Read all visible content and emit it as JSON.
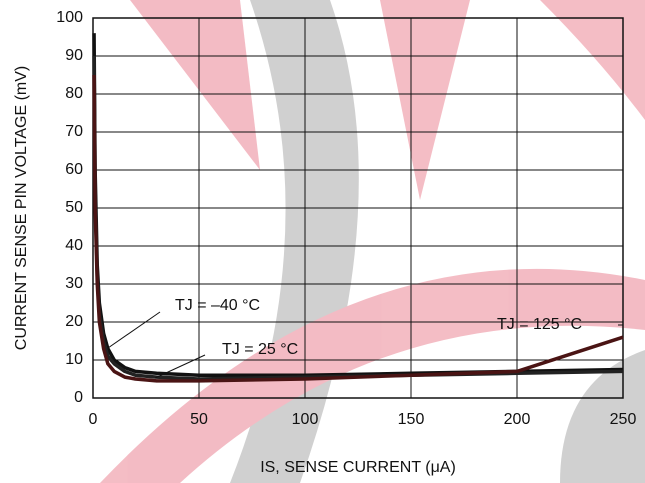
{
  "chart_data": {
    "type": "line",
    "x_label": "IS, SENSE CURRENT (μA)",
    "y_label": "CURRENT SENSE PIN VOLTAGE (mV)",
    "x": [
      0.5,
      1,
      2,
      3,
      5,
      7,
      10,
      15,
      20,
      30,
      50,
      100,
      150,
      200,
      250
    ],
    "series": [
      {
        "name": "TJ = –40 °C",
        "color": "#111111",
        "values": [
          96,
          60,
          35,
          25,
          17,
          13,
          10,
          8,
          7,
          6.5,
          6,
          6,
          6.5,
          7,
          7.5
        ]
      },
      {
        "name": "TJ = 25 °C",
        "color": "#222222",
        "values": [
          90,
          55,
          32,
          22,
          15,
          11,
          9,
          7,
          6,
          5.5,
          5,
          5.5,
          6,
          6.5,
          7
        ]
      },
      {
        "name": "TJ = 125 °C",
        "color": "#4a1414",
        "values": [
          85,
          50,
          30,
          20,
          13,
          9,
          7,
          5.5,
          5,
          4.5,
          4.5,
          5,
          6,
          7,
          16
        ]
      }
    ],
    "xlim": [
      0,
      250
    ],
    "xticks": [
      0,
      50,
      100,
      150,
      200,
      250
    ],
    "ylim": [
      0,
      100
    ],
    "yticks": [
      0,
      10,
      20,
      30,
      40,
      50,
      60,
      70,
      80,
      90,
      100
    ],
    "grid": true
  }
}
